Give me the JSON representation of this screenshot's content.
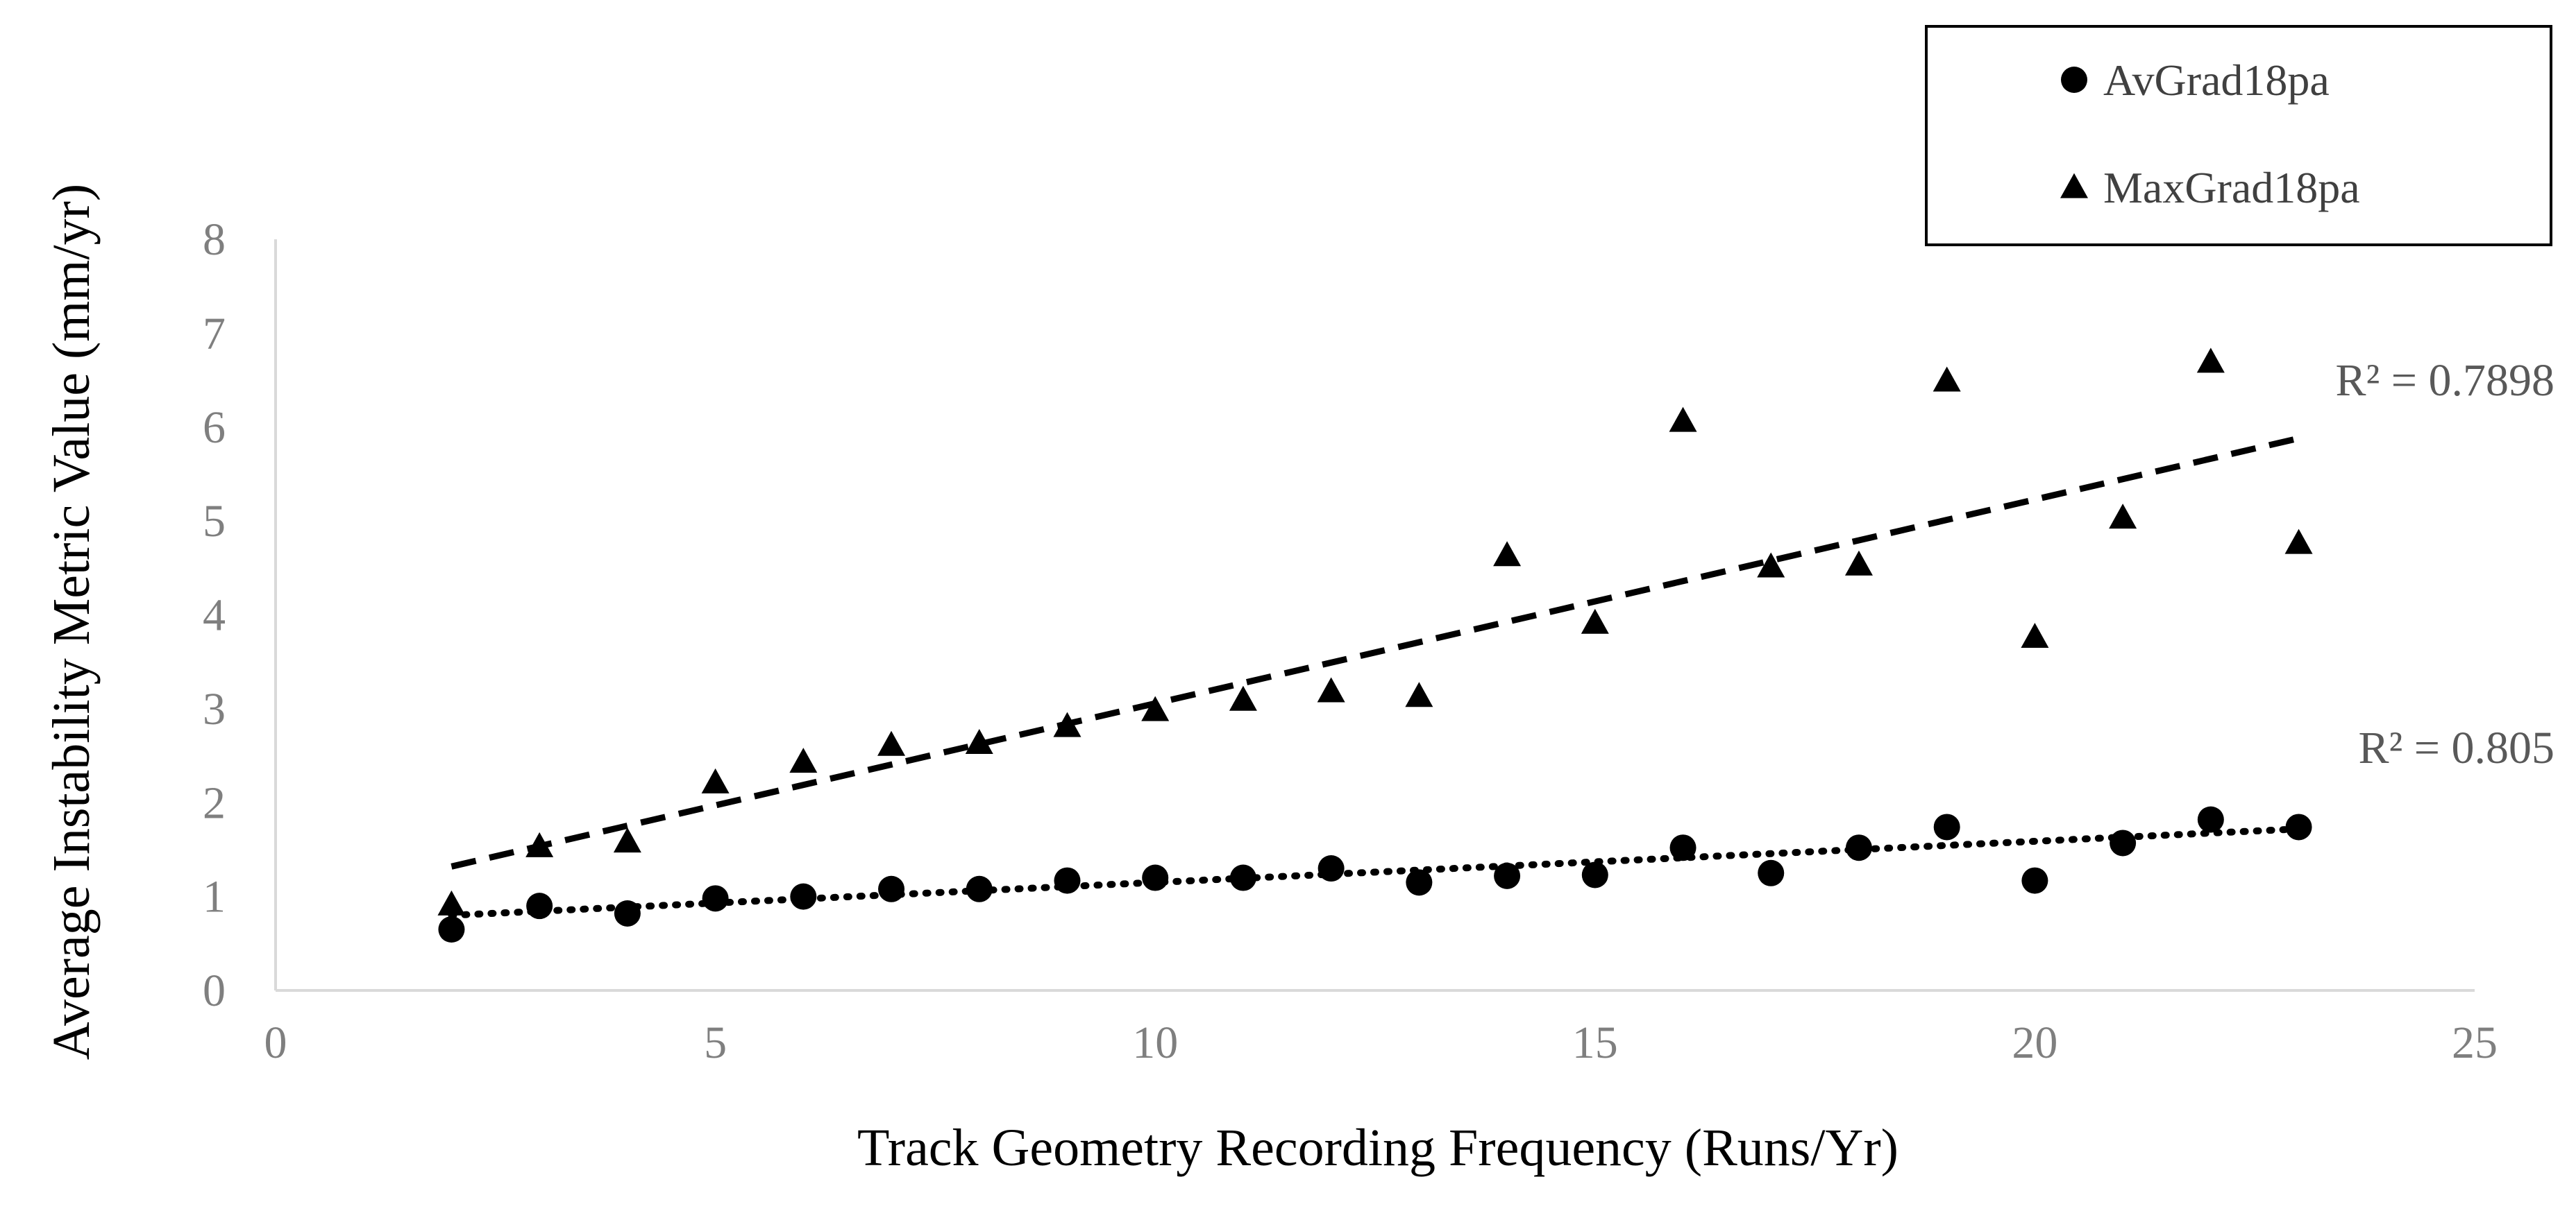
{
  "chart_data": {
    "type": "scatter",
    "xlabel": "Track Geometry Recording Frequency (Runs/Yr)",
    "ylabel": "Average Instability Metric Value (mm/yr)",
    "xlim": [
      0,
      25
    ],
    "ylim": [
      0,
      8
    ],
    "xticks": [
      0,
      5,
      10,
      15,
      20,
      25
    ],
    "yticks": [
      0,
      1,
      2,
      3,
      4,
      5,
      6,
      7,
      8
    ],
    "grid": false,
    "legend_position": "top-right",
    "series": [
      {
        "name": "AvGrad18pa",
        "marker": "circle",
        "x": [
          2,
          3,
          4,
          5,
          6,
          7,
          8,
          9,
          10,
          11,
          12,
          13,
          14,
          15,
          16,
          17,
          18,
          19,
          20,
          21,
          22,
          23
        ],
        "y": [
          0.65,
          0.9,
          0.82,
          0.98,
          1.0,
          1.08,
          1.08,
          1.17,
          1.2,
          1.2,
          1.3,
          1.15,
          1.22,
          1.23,
          1.52,
          1.25,
          1.52,
          1.74,
          1.17,
          1.57,
          1.82,
          1.74
        ],
        "trendline": {
          "style": "dotted",
          "x": [
            2,
            23
          ],
          "y": [
            0.8,
            1.72
          ],
          "r2_label": "R² = 0.805"
        }
      },
      {
        "name": "MaxGrad18pa",
        "marker": "triangle",
        "x": [
          2,
          3,
          4,
          5,
          6,
          7,
          8,
          9,
          10,
          11,
          12,
          13,
          14,
          15,
          16,
          17,
          18,
          19,
          20,
          21,
          22,
          23
        ],
        "y": [
          0.9,
          1.52,
          1.57,
          2.2,
          2.42,
          2.6,
          2.62,
          2.8,
          2.97,
          3.08,
          3.17,
          3.12,
          4.62,
          3.9,
          6.05,
          4.5,
          4.52,
          6.48,
          3.75,
          5.02,
          6.68,
          4.75
        ],
        "trendline": {
          "style": "dashed",
          "x": [
            2,
            23
          ],
          "y": [
            1.32,
            5.88
          ],
          "r2_label": "R² = 0.7898"
        }
      }
    ],
    "colors": {
      "markers": "#000000",
      "axis": "#d9d9d9",
      "tick_labels": "#7f7f7f"
    }
  }
}
